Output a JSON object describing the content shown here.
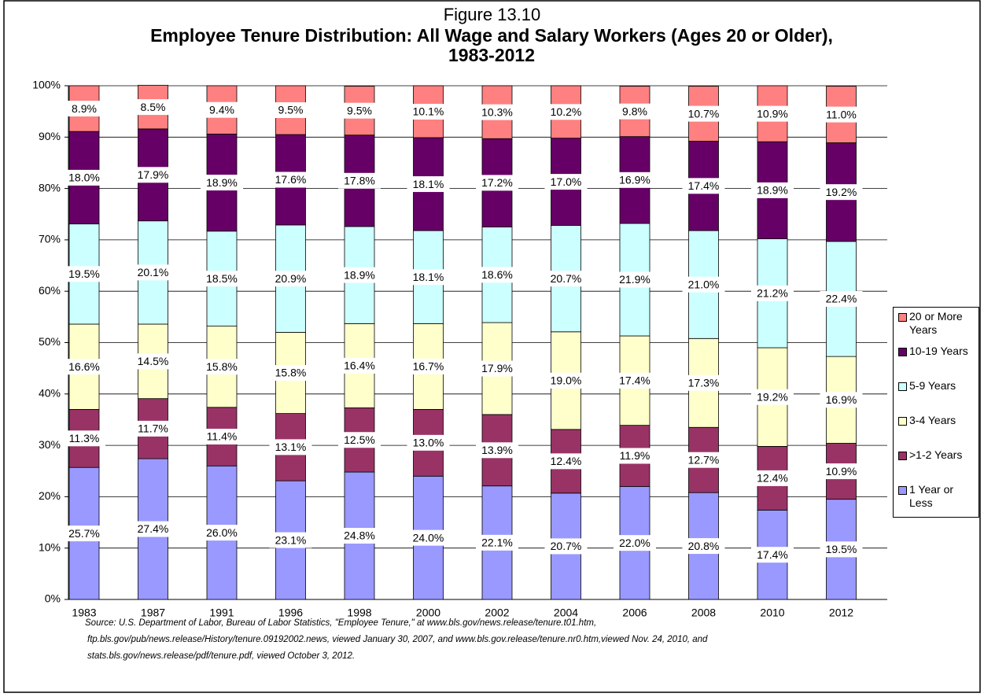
{
  "chart_data": {
    "type": "stacked_bar",
    "supertitle": "Figure 13.10",
    "title": "Employee Tenure Distribution: All Wage and Salary Workers (Ages 20 or Older), 1983-2012",
    "categories": [
      "1983",
      "1987",
      "1991",
      "1996",
      "1998",
      "2000",
      "2002",
      "2004",
      "2006",
      "2008",
      "2010",
      "2012"
    ],
    "series": [
      {
        "name": "1 Year or Less",
        "color": "#9999ff",
        "values": [
          25.7,
          27.4,
          26.0,
          23.1,
          24.8,
          24.0,
          22.1,
          20.7,
          22.0,
          20.8,
          17.4,
          19.5
        ],
        "value_labels": [
          "25.7%",
          "27.4%",
          "26.0%",
          "23.1%",
          "24.8%",
          "24.0%",
          "22.1%",
          "20.7%",
          "22.0%",
          "20.8%",
          "17.4%",
          "19.5%"
        ]
      },
      {
        "name": ">1-2 Years",
        "color": "#993366",
        "values": [
          11.3,
          11.7,
          11.4,
          13.1,
          12.5,
          13.0,
          13.9,
          12.4,
          11.9,
          12.7,
          12.4,
          10.9
        ],
        "value_labels": [
          "11.3%",
          "11.7%",
          "11.4%",
          "13.1%",
          "12.5%",
          "13.0%",
          "13.9%",
          "12.4%",
          "11.9%",
          "12.7%",
          "12.4%",
          "10.9%"
        ]
      },
      {
        "name": "3-4 Years",
        "color": "#ffffcc",
        "values": [
          16.6,
          14.5,
          15.8,
          15.8,
          16.4,
          16.7,
          17.9,
          19.0,
          17.4,
          17.3,
          19.2,
          16.9
        ],
        "value_labels": [
          "16.6%",
          "14.5%",
          "15.8%",
          "15.8%",
          "16.4%",
          "16.7%",
          "17.9%",
          "19.0%",
          "17.4%",
          "17.3%",
          "19.2%",
          "16.9%"
        ]
      },
      {
        "name": "5-9 Years",
        "color": "#ccffff",
        "values": [
          19.5,
          20.1,
          18.5,
          20.9,
          18.9,
          18.1,
          18.6,
          20.7,
          21.9,
          21.0,
          21.2,
          22.4
        ],
        "value_labels": [
          "19.5%",
          "20.1%",
          "18.5%",
          "20.9%",
          "18.9%",
          "18.1%",
          "18.6%",
          "20.7%",
          "21.9%",
          "21.0%",
          "21.2%",
          "22.4%"
        ]
      },
      {
        "name": "10-19 Years",
        "color": "#660066",
        "values": [
          18.0,
          17.9,
          18.9,
          17.6,
          17.8,
          18.1,
          17.2,
          17.0,
          16.9,
          17.4,
          18.9,
          19.2
        ],
        "value_labels": [
          "18.0%",
          "17.9%",
          "18.9%",
          "17.6%",
          "17.8%",
          "18.1%",
          "17.2%",
          "17.0%",
          "16.9%",
          "17.4%",
          "18.9%",
          "19.2%"
        ]
      },
      {
        "name": "20 or More Years",
        "color": "#ff8080",
        "values": [
          8.9,
          8.5,
          9.4,
          9.5,
          9.5,
          10.1,
          10.3,
          10.2,
          9.8,
          10.7,
          10.9,
          11.0
        ],
        "value_labels": [
          "8.9%",
          "8.5%",
          "9.4%",
          "9.5%",
          "9.5%",
          "10.1%",
          "10.3%",
          "10.2%",
          "9.8%",
          "10.7%",
          "10.9%",
          "11.0%"
        ]
      }
    ],
    "ylim": [
      0,
      100
    ],
    "yticks": [
      {
        "value": 0,
        "label": "0%"
      },
      {
        "value": 10,
        "label": "10%"
      },
      {
        "value": 20,
        "label": "20%"
      },
      {
        "value": 30,
        "label": "30%"
      },
      {
        "value": 40,
        "label": "40%"
      },
      {
        "value": 50,
        "label": "50%"
      },
      {
        "value": 60,
        "label": "60%"
      },
      {
        "value": 70,
        "label": "70%"
      },
      {
        "value": 80,
        "label": "80%"
      },
      {
        "value": 90,
        "label": "90%"
      },
      {
        "value": 100,
        "label": "100%"
      }
    ],
    "grid": true,
    "legend": "right",
    "source": [
      "Source:  U.S. Department of Labor, Bureau of Labor Statistics, \"Employee Tenure,\" at www.bls.gov/news.release/tenure.t01.htm,",
      "ftp.bls.gov/pub/news.release/History/tenure.09192002.news, viewed January 30, 2007, and www.bls.gov.release/tenure.nr0.htm,viewed Nov. 24, 2010, and",
      "stats.bls.gov/news.release/pdf/tenure.pdf, viewed October 3, 2012."
    ]
  }
}
